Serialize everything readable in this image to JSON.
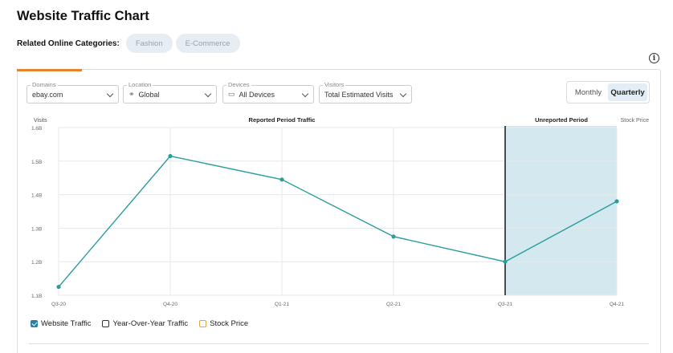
{
  "page": {
    "title": "Website Traffic Chart",
    "categories_label": "Related Online Categories:",
    "categories": [
      "Fashion",
      "E-Commerce"
    ]
  },
  "filters": {
    "domains": {
      "label": "Domains",
      "value": "ebay.com"
    },
    "location": {
      "label": "Location",
      "value": "Global"
    },
    "devices": {
      "label": "Devices",
      "value": "All Devices"
    },
    "visitors": {
      "label": "Visitors",
      "value": "Total Estimated Visits"
    }
  },
  "toggle": {
    "monthly": "Monthly",
    "quarterly": "Quarterly",
    "selected": "Quarterly"
  },
  "chart_labels": {
    "y_title": "Visits",
    "reported": "Reported Period Traffic",
    "unreported": "Unreported Period",
    "stock": "Stock Price"
  },
  "legend": [
    {
      "label": "Website Traffic",
      "checked": true
    },
    {
      "label": "Year-Over-Year Traffic",
      "checked": false
    },
    {
      "label": "Stock Price",
      "checked": false
    }
  ],
  "colors": {
    "line": "#2a9d9d",
    "unreported_fill": "#d3e9ef",
    "accent": "#e8832c"
  },
  "icons": {
    "location": "globe-icon",
    "devices": "monitor-icon",
    "info": "info-icon"
  },
  "chart_data": {
    "type": "line",
    "x": [
      "Q3-20",
      "Q4-20",
      "Q1-21",
      "Q2-21",
      "Q3-21",
      "Q4-21"
    ],
    "y_tick_labels": [
      "1.6B",
      "1.5B",
      "1.4B",
      "1.3B",
      "1.2B",
      "1.1B"
    ],
    "ylim": [
      1.1,
      1.6
    ],
    "series": [
      {
        "name": "Website Traffic",
        "values": [
          1.125,
          1.515,
          1.445,
          1.275,
          1.2,
          1.38
        ]
      }
    ],
    "unreported_from": "Q3-21",
    "grid": true,
    "legend_position": "bottom-left"
  }
}
